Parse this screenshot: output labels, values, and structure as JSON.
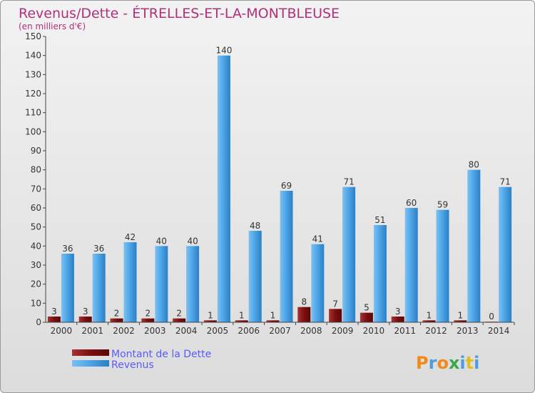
{
  "chart_data": {
    "type": "bar",
    "title": "Revenus/Dette - ÉTRELLES-ET-LA-MONTBLEUSE",
    "subtitle": "(en milliers d'€)",
    "categories": [
      "2000",
      "2001",
      "2002",
      "2003",
      "2004",
      "2005",
      "2006",
      "2007",
      "2008",
      "2009",
      "2010",
      "2011",
      "2012",
      "2013",
      "2014"
    ],
    "series": [
      {
        "name": "Montant de la Dette",
        "color": "#7a0f0f",
        "values": [
          3,
          3,
          2,
          2,
          2,
          1,
          1,
          1,
          8,
          7,
          5,
          3,
          1,
          1,
          0
        ]
      },
      {
        "name": "Revenus",
        "color": "#4aa3e6",
        "values": [
          36,
          36,
          42,
          40,
          40,
          140,
          48,
          69,
          41,
          71,
          51,
          60,
          59,
          80,
          71
        ]
      }
    ],
    "ylim": [
      0,
      150
    ],
    "yticks": [
      0,
      10,
      20,
      30,
      40,
      50,
      60,
      70,
      80,
      90,
      100,
      110,
      120,
      130,
      140,
      150
    ],
    "grid": false,
    "legend": "bottom-left"
  },
  "logo": {
    "letters": [
      "P",
      "r",
      "o",
      "x",
      "i",
      "t",
      "i"
    ],
    "colors": [
      "#f08a1c",
      "#4a9de0",
      "#f08a1c",
      "#3aa84a",
      "#4a9de0",
      "#e0c020",
      "#4a9de0"
    ]
  }
}
